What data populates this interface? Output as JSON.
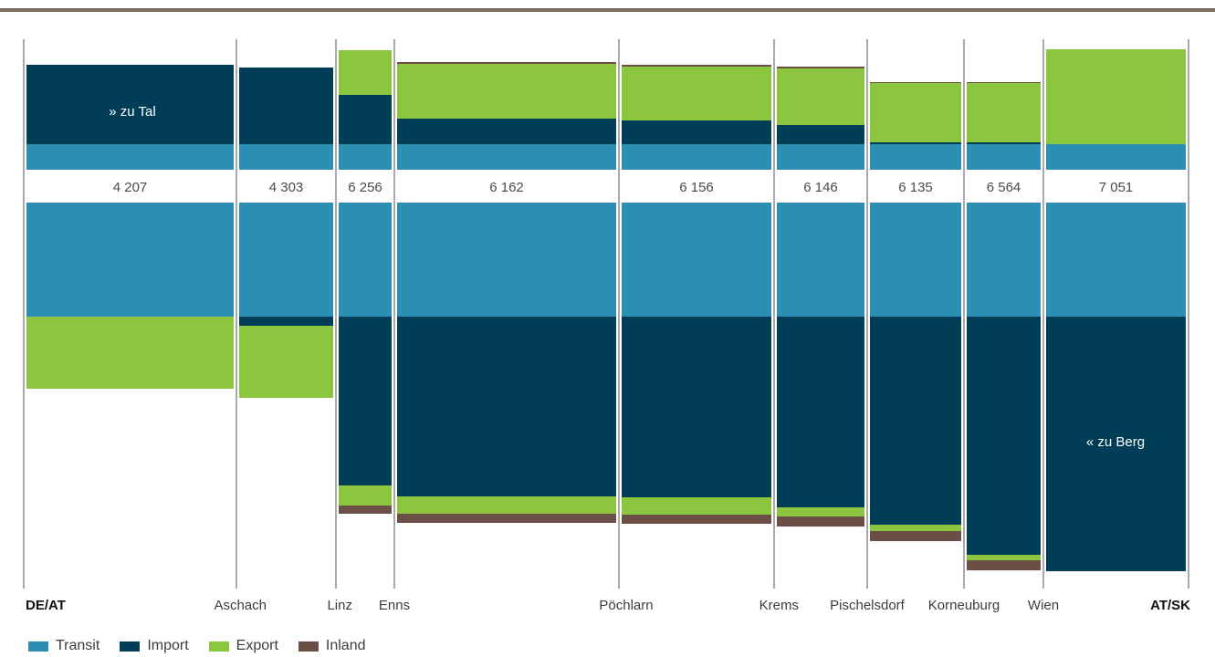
{
  "colors": {
    "transit": "#2b8fb3",
    "import": "#003e58",
    "export": "#8cc63f",
    "inland": "#6b4f47",
    "rule": "#7b6a5f",
    "gridline": "#555555"
  },
  "chart_data": {
    "type": "bar",
    "locations": [
      "DE/AT",
      "Aschach",
      "Linz",
      "Enns",
      "Pöchlarn",
      "Krems",
      "Pischelsdorf",
      "Korneuburg",
      "Wien",
      "AT/SK"
    ],
    "segments": [
      {
        "from": "DE/AT",
        "to": "Aschach",
        "total_label": "4 207",
        "downstream": {
          "transit": 28,
          "import": 87,
          "export": 0,
          "inland": 0
        },
        "upstream": {
          "transit": 125,
          "import": 0,
          "export": 79,
          "inland": 0
        }
      },
      {
        "from": "Aschach",
        "to": "Linz",
        "total_label": "4 303",
        "downstream": {
          "transit": 28,
          "import": 84,
          "export": 0,
          "inland": 0
        },
        "upstream": {
          "transit": 125,
          "import": 10,
          "export": 79,
          "inland": 0
        }
      },
      {
        "from": "Linz",
        "to": "Enns",
        "total_label": "6 256",
        "downstream": {
          "transit": 28,
          "import": 54,
          "export": 49,
          "inland": 0
        },
        "upstream": {
          "transit": 125,
          "import": 185,
          "export": 22,
          "inland": 9
        }
      },
      {
        "from": "Enns",
        "to": "Pöchlarn",
        "total_label": "6 162",
        "downstream": {
          "transit": 28,
          "import": 28,
          "export": 60,
          "inland": 2
        },
        "upstream": {
          "transit": 125,
          "import": 197,
          "export": 19,
          "inland": 10
        }
      },
      {
        "from": "Pöchlarn",
        "to": "Krems",
        "total_label": "6 156",
        "downstream": {
          "transit": 28,
          "import": 26,
          "export": 59,
          "inland": 2
        },
        "upstream": {
          "transit": 125,
          "import": 198,
          "export": 19,
          "inland": 10
        }
      },
      {
        "from": "Krems",
        "to": "Pischelsdorf",
        "total_label": "6 146",
        "downstream": {
          "transit": 28,
          "import": 21,
          "export": 62,
          "inland": 2
        },
        "upstream": {
          "transit": 125,
          "import": 209,
          "export": 10,
          "inland": 11
        }
      },
      {
        "from": "Pischelsdorf",
        "to": "Korneuburg",
        "total_label": "6 135",
        "downstream": {
          "transit": 28,
          "import": 2,
          "export": 65,
          "inland": 1
        },
        "upstream": {
          "transit": 125,
          "import": 228,
          "export": 7,
          "inland": 11
        }
      },
      {
        "from": "Korneuburg",
        "to": "Wien",
        "total_label": "6 564",
        "downstream": {
          "transit": 28,
          "import": 2,
          "export": 65,
          "inland": 1
        },
        "upstream": {
          "transit": 125,
          "import": 261,
          "export": 6,
          "inland": 11
        }
      },
      {
        "from": "Wien",
        "to": "AT/SK",
        "total_label": "7 051",
        "downstream": {
          "transit": 28,
          "import": 0,
          "export": 104,
          "inland": 0
        },
        "upstream": {
          "transit": 125,
          "import": 279,
          "export": 0,
          "inland": 0
        }
      }
    ],
    "direction_labels": {
      "downstream": "» zu Tal",
      "upstream": "« zu Berg"
    },
    "legend": [
      {
        "key": "transit",
        "label": "Transit"
      },
      {
        "key": "import",
        "label": "Import"
      },
      {
        "key": "export",
        "label": "Export"
      },
      {
        "key": "inland",
        "label": "Inland"
      }
    ]
  }
}
